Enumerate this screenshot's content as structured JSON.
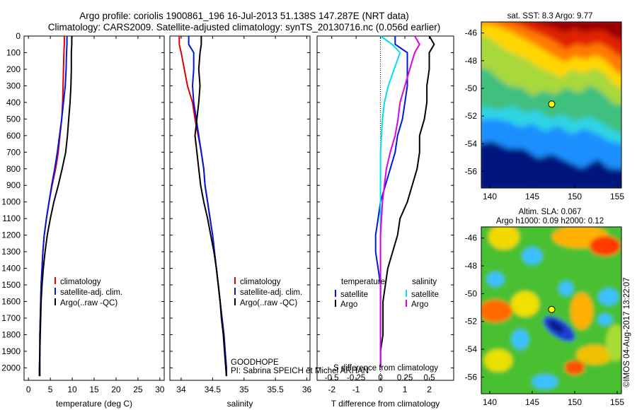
{
  "title_line1": "Argo profile: coriolis 1900861_196 16-Jul-2013 51.138S 147.287E (NRT data)",
  "title_line2": "Climatology: CARS2009. Satellite-adjusted climatology: synTS_20130716.nc (0.056d earlier)",
  "credit": "©IMOS 04-Aug-2017 13:22:07",
  "program": "GOODHOPE",
  "pi": "PI: Sabrina SPEICH et Michel ARHAN",
  "colors": {
    "climatology": "#e00000",
    "satellite": "#0018d8",
    "argo": "#000000",
    "sal_satellite": "#00e0f0",
    "sal_argo": "#e000e0"
  },
  "chart_data": [
    {
      "type": "line",
      "id": "temperature",
      "xlabel": "temperature (deg C)",
      "xlim": [
        -1,
        31
      ],
      "xticks": [
        0,
        5,
        10,
        15,
        20,
        25,
        30
      ],
      "ylim": [
        0,
        2075
      ],
      "yticks": [
        0,
        100,
        200,
        300,
        400,
        500,
        600,
        700,
        800,
        900,
        1000,
        1100,
        1200,
        1300,
        1400,
        1500,
        1600,
        1700,
        1800,
        1900,
        2000
      ],
      "legend": [
        "climatology",
        "satellite-adj. clim.",
        "Argo(..raw -QC)"
      ],
      "series": [
        {
          "name": "climatology",
          "color_key": "climatology",
          "x": [
            8.2,
            8.2,
            8.1,
            8.0,
            7.9,
            7.8,
            7.6,
            7.2,
            6.8,
            6.2,
            5.4,
            4.7,
            4.1,
            3.6,
            3.3,
            3.1,
            2.9,
            2.8,
            2.7,
            2.6,
            2.6,
            2.5,
            2.5
          ],
          "y": [
            0,
            50,
            100,
            200,
            300,
            400,
            500,
            600,
            700,
            800,
            900,
            1000,
            1100,
            1200,
            1300,
            1400,
            1500,
            1600,
            1700,
            1800,
            1900,
            2000,
            2050
          ]
        },
        {
          "name": "satellite-adj. clim.",
          "color_key": "satellite",
          "x": [
            8.8,
            8.8,
            8.7,
            8.6,
            8.4,
            8.0,
            7.6,
            7.1,
            6.6,
            6.0,
            5.3,
            4.7,
            4.1,
            3.6,
            3.3,
            3.1,
            2.9,
            2.8,
            2.7,
            2.6,
            2.6,
            2.5,
            2.5
          ],
          "y": [
            0,
            50,
            100,
            200,
            300,
            400,
            500,
            600,
            700,
            800,
            900,
            1000,
            1100,
            1200,
            1300,
            1400,
            1500,
            1600,
            1700,
            1800,
            1900,
            2000,
            2050
          ]
        },
        {
          "name": "Argo(..raw -QC)",
          "color_key": "argo",
          "x": [
            9.9,
            9.9,
            9.8,
            9.8,
            9.7,
            9.5,
            9.2,
            8.9,
            8.5,
            7.7,
            6.8,
            5.8,
            5.0,
            4.3,
            3.8,
            3.4,
            3.1,
            2.9,
            2.8,
            2.7,
            2.6,
            2.6,
            2.6
          ],
          "y": [
            0,
            50,
            100,
            200,
            300,
            400,
            500,
            600,
            700,
            800,
            900,
            1000,
            1100,
            1200,
            1300,
            1400,
            1500,
            1600,
            1700,
            1800,
            1900,
            2000,
            2050
          ]
        }
      ]
    },
    {
      "type": "line",
      "id": "salinity",
      "xlabel": "salinity",
      "xlim": [
        33.82,
        36.05
      ],
      "xticks": [
        34,
        34.5,
        35,
        35.5,
        36
      ],
      "ylim": [
        0,
        2075
      ],
      "legend": [
        "climatology",
        "satellite-adj. clim.",
        "Argo(..raw -QC)"
      ],
      "series": [
        {
          "name": "climatology",
          "color_key": "climatology",
          "x": [
            33.97,
            33.97,
            34.0,
            34.05,
            34.1,
            34.18,
            34.22,
            34.27,
            34.32,
            34.36,
            34.38,
            34.42,
            34.46,
            34.5,
            34.53,
            34.56,
            34.59,
            34.62,
            34.65,
            34.68,
            34.7,
            34.72,
            34.72
          ],
          "y": [
            0,
            50,
            100,
            200,
            300,
            400,
            500,
            600,
            700,
            800,
            900,
            1000,
            1100,
            1200,
            1300,
            1400,
            1500,
            1600,
            1700,
            1800,
            1900,
            2000,
            2050
          ]
        },
        {
          "name": "satellite-adj. clim.",
          "color_key": "satellite",
          "x": [
            34.12,
            34.12,
            34.2,
            34.2,
            34.18,
            34.2,
            34.24,
            34.28,
            34.32,
            34.36,
            34.38,
            34.42,
            34.46,
            34.5,
            34.53,
            34.56,
            34.59,
            34.62,
            34.65,
            34.68,
            34.7,
            34.72,
            34.72
          ],
          "y": [
            0,
            50,
            100,
            200,
            300,
            400,
            500,
            600,
            700,
            800,
            900,
            1000,
            1100,
            1200,
            1300,
            1400,
            1500,
            1600,
            1700,
            1800,
            1900,
            2000,
            2050
          ]
        },
        {
          "name": "Argo(..raw -QC)",
          "color_key": "argo",
          "x": [
            34.32,
            34.32,
            34.3,
            34.28,
            34.3,
            34.28,
            34.25,
            34.22,
            34.25,
            34.28,
            34.31,
            34.36,
            34.42,
            34.47,
            34.52,
            34.56,
            34.59,
            34.62,
            34.64,
            34.67,
            34.69,
            34.71,
            34.72
          ],
          "y": [
            0,
            50,
            100,
            200,
            300,
            400,
            500,
            600,
            700,
            800,
            900,
            1000,
            1100,
            1200,
            1300,
            1400,
            1500,
            1600,
            1700,
            1800,
            1900,
            2000,
            2050
          ]
        }
      ]
    },
    {
      "type": "line",
      "id": "differences",
      "xlabel": "T difference from climatology",
      "xlim": [
        -2.6,
        3.0
      ],
      "xticks": [
        -2,
        -1,
        0,
        1,
        2
      ],
      "top_xlabel": "S difference from climatology",
      "top_xlim": [
        -0.65,
        0.75
      ],
      "top_xticks": [
        -0.5,
        -0.25,
        0,
        0.25,
        0.5
      ],
      "top_xticklabels": [
        "-0.5",
        "-0.25",
        "0",
        "0.25",
        "0.5"
      ],
      "ylim": [
        0,
        2075
      ],
      "legend_left_title": "temperature",
      "legend_right_title": "salinity",
      "legend_left": [
        "satellite",
        "Argo"
      ],
      "legend_right": [
        "satellite",
        "Argo"
      ],
      "series": [
        {
          "name": "temperature satellite",
          "color_key": "satellite",
          "axis": "T",
          "x": [
            0.6,
            0.6,
            1.1,
            1.1,
            1.1,
            1.0,
            0.9,
            0.7,
            0.6,
            0.4,
            0.2,
            0.0,
            -0.1,
            -0.2,
            -0.2,
            -0.1,
            0.0,
            0.0,
            0.0,
            0.0,
            0.0,
            0.0
          ],
          "y": [
            0,
            50,
            100,
            200,
            300,
            400,
            500,
            600,
            700,
            800,
            900,
            1000,
            1100,
            1200,
            1300,
            1400,
            1500,
            1600,
            1700,
            1800,
            1900,
            2000
          ]
        },
        {
          "name": "temperature Argo",
          "color_key": "argo",
          "axis": "T",
          "x": [
            2.0,
            2.2,
            2.0,
            2.0,
            1.9,
            1.9,
            1.8,
            1.6,
            1.6,
            1.5,
            1.3,
            1.1,
            0.8,
            0.7,
            0.5,
            0.3,
            0.2,
            0.1,
            0.1,
            0.1,
            0.0,
            0.0
          ],
          "y": [
            0,
            50,
            100,
            200,
            300,
            400,
            500,
            600,
            700,
            800,
            900,
            1000,
            1100,
            1200,
            1300,
            1400,
            1500,
            1600,
            1700,
            1800,
            1900,
            2000
          ]
        },
        {
          "name": "salinity satellite",
          "color_key": "sal_satellite",
          "axis": "S",
          "x": [
            0.0,
            0.12,
            0.2,
            0.14,
            0.08,
            0.04,
            0.02,
            0.01,
            0.0,
            0.0,
            0.0,
            0.0,
            0.0,
            0.0,
            0.0,
            0.0,
            0.0,
            0.0,
            0.0,
            0.0,
            0.0,
            0.0
          ],
          "y": [
            0,
            50,
            100,
            200,
            300,
            400,
            500,
            600,
            700,
            800,
            900,
            1000,
            1100,
            1200,
            1300,
            1400,
            1500,
            1600,
            1700,
            1800,
            1900,
            2000
          ]
        },
        {
          "name": "salinity Argo",
          "color_key": "sal_argo",
          "axis": "S",
          "x": [
            0.35,
            0.4,
            0.35,
            0.3,
            0.25,
            0.2,
            0.18,
            0.15,
            0.1,
            0.06,
            0.04,
            0.02,
            0.01,
            0.0,
            0.0,
            0.0,
            0.0,
            0.0,
            0.0,
            0.0,
            0.0,
            0.0
          ],
          "y": [
            0,
            50,
            100,
            200,
            300,
            400,
            500,
            600,
            700,
            800,
            900,
            1000,
            1100,
            1200,
            1300,
            1400,
            1500,
            1600,
            1700,
            1800,
            1900,
            2000
          ]
        }
      ]
    },
    {
      "type": "heatmap",
      "id": "sst_map",
      "title": "sat. SST: 8.3 Argo: 9.77",
      "xlim": [
        139,
        155.5
      ],
      "ylim": [
        -57.2,
        -45.2
      ],
      "xticks": [
        140,
        145,
        150,
        155
      ],
      "yticks": [
        -46,
        -48,
        -50,
        -52,
        -54,
        -56
      ],
      "marker": {
        "lon": 147.287,
        "lat": -51.138
      }
    },
    {
      "type": "heatmap",
      "id": "sla_map",
      "title_line1": "Altim. SLA: 0.067",
      "title_line2": "Argo h1000: 0.09 h2000: 0.12",
      "xlim": [
        139,
        155.5
      ],
      "ylim": [
        -57.2,
        -45.2
      ],
      "xticks": [
        140,
        145,
        150,
        155
      ],
      "yticks": [
        -46,
        -48,
        -50,
        -52,
        -54,
        -56
      ],
      "marker": {
        "lon": 147.287,
        "lat": -51.138
      }
    }
  ]
}
